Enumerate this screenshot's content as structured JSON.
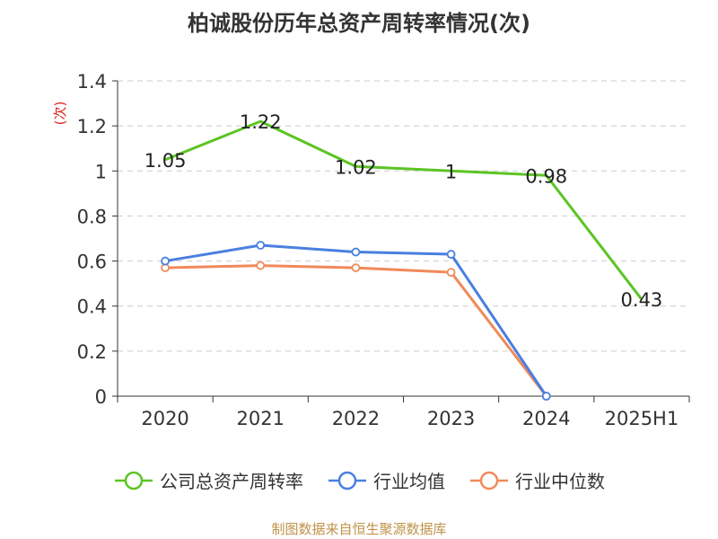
{
  "chart_data": {
    "type": "line",
    "title": "柏诚股份历年总资产周转率情况(次)",
    "ylabel": "(次)",
    "categories": [
      "2020",
      "2021",
      "2022",
      "2023",
      "2024",
      "2025H1"
    ],
    "ylim": [
      0,
      1.4
    ],
    "yticks": [
      0,
      0.2,
      0.4,
      0.6,
      0.8,
      1,
      1.2,
      1.4
    ],
    "ytick_labels": [
      "0",
      "0.2",
      "0.4",
      "0.6",
      "0.8",
      "1",
      "1.2",
      "1.4"
    ],
    "grid": true,
    "legend_position": "bottom",
    "series": [
      {
        "name": "公司总资产周转率",
        "color": "#5cc424",
        "values": [
          1.05,
          1.22,
          1.02,
          1,
          0.98,
          0.43
        ],
        "labels": [
          "1.05",
          "1.22",
          "1.02",
          "1",
          "0.98",
          "0.43"
        ],
        "markers": false
      },
      {
        "name": "行业均值",
        "color": "#4a7fe0",
        "values": [
          0.6,
          0.67,
          0.64,
          0.63,
          0,
          null
        ],
        "markers": true
      },
      {
        "name": "行业中位数",
        "color": "#f08a5a",
        "values": [
          0.57,
          0.58,
          0.57,
          0.55,
          0,
          null
        ],
        "markers": true
      }
    ]
  },
  "source_note": "制图数据来自恒生聚源数据库"
}
